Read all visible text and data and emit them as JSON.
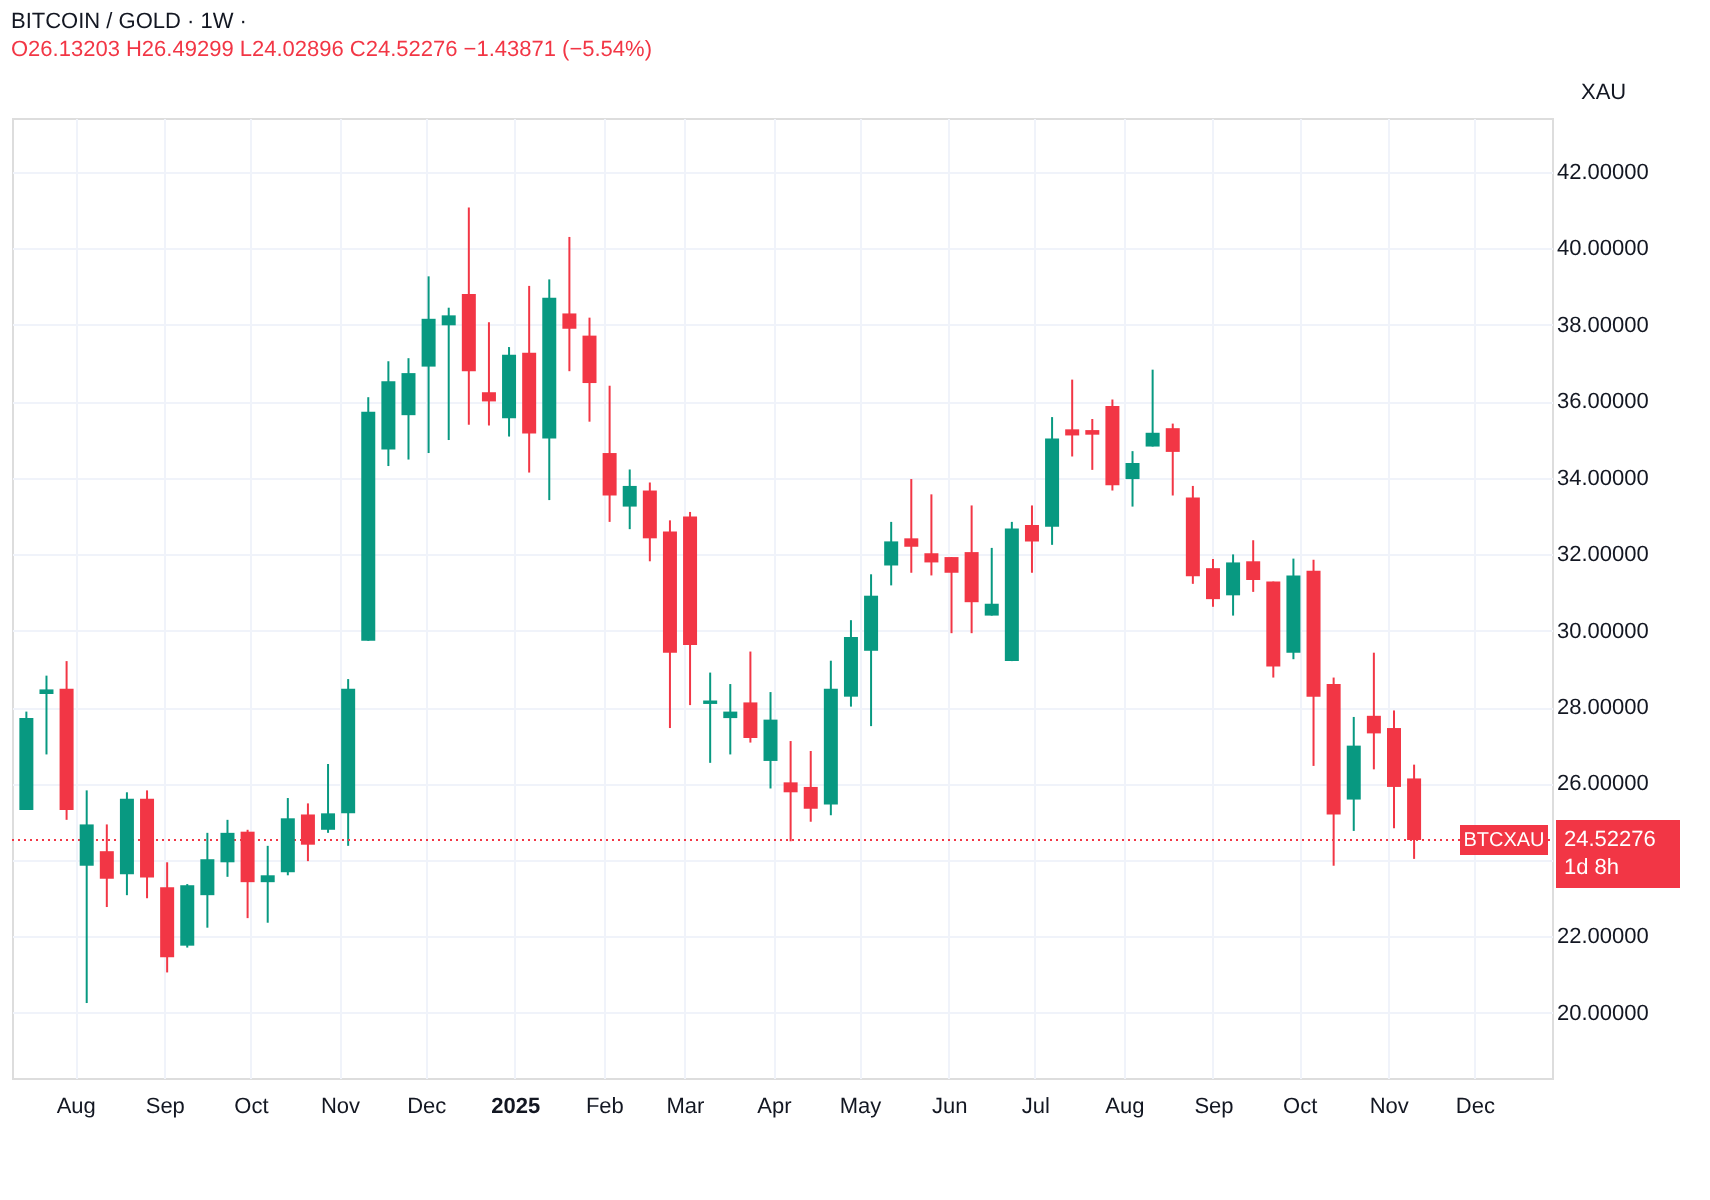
{
  "chart_data": {
    "type": "candlestick",
    "title": "BITCOIN / GOLD · 1W ·",
    "subtitle": "O26.13203 H26.49299 L24.02896 C24.52276 −1.43871 (−5.54%)",
    "ylabel": "XAU",
    "x": [
      "2024-07-15",
      "2024-07-22",
      "2024-07-29",
      "2024-08-05",
      "2024-08-12",
      "2024-08-19",
      "2024-08-26",
      "2024-09-02",
      "2024-09-09",
      "2024-09-16",
      "2024-09-23",
      "2024-09-30",
      "2024-10-07",
      "2024-10-14",
      "2024-10-21",
      "2024-10-28",
      "2024-11-04",
      "2024-11-11",
      "2024-11-18",
      "2024-11-25",
      "2024-12-02",
      "2024-12-09",
      "2024-12-16",
      "2024-12-23",
      "2024-12-30",
      "2025-01-06",
      "2025-01-13",
      "2025-01-20",
      "2025-01-27",
      "2025-02-03",
      "2025-02-10",
      "2025-02-17",
      "2025-02-24",
      "2025-03-03",
      "2025-03-10",
      "2025-03-17",
      "2025-03-24",
      "2025-03-31",
      "2025-04-07",
      "2025-04-14",
      "2025-04-21",
      "2025-04-28",
      "2025-05-05",
      "2025-05-12",
      "2025-05-19",
      "2025-05-26",
      "2025-06-02",
      "2025-06-09",
      "2025-06-16",
      "2025-06-23",
      "2025-06-30",
      "2025-07-07",
      "2025-07-14",
      "2025-07-21",
      "2025-07-28",
      "2025-08-04",
      "2025-08-11",
      "2025-08-18",
      "2025-08-25",
      "2025-09-01",
      "2025-09-08",
      "2025-09-15",
      "2025-09-22",
      "2025-09-29",
      "2025-10-06",
      "2025-10-13",
      "2025-10-20",
      "2025-10-27",
      "2025-11-03",
      "2025-11-10"
    ],
    "ohlc": [
      [
        25.31,
        27.88,
        25.31,
        27.71
      ],
      [
        28.34,
        28.82,
        26.76,
        28.46
      ],
      [
        28.48,
        29.2,
        25.05,
        25.31
      ],
      [
        23.85,
        25.82,
        20.26,
        24.93
      ],
      [
        24.23,
        24.93,
        22.77,
        23.51
      ],
      [
        23.63,
        25.77,
        23.08,
        25.6
      ],
      [
        25.6,
        25.82,
        23.0,
        23.54
      ],
      [
        23.29,
        23.94,
        21.06,
        21.46
      ],
      [
        21.76,
        23.37,
        21.71,
        23.34
      ],
      [
        23.08,
        24.71,
        22.23,
        24.02
      ],
      [
        23.94,
        25.05,
        23.56,
        24.71
      ],
      [
        24.74,
        24.79,
        22.48,
        23.42
      ],
      [
        23.42,
        24.37,
        22.36,
        23.6
      ],
      [
        23.68,
        25.62,
        23.6,
        25.09
      ],
      [
        25.19,
        25.48,
        23.97,
        24.4
      ],
      [
        24.79,
        26.51,
        24.71,
        25.22
      ],
      [
        25.22,
        28.73,
        24.37,
        28.48
      ],
      [
        29.73,
        36.1,
        29.73,
        35.72
      ],
      [
        34.73,
        37.04,
        34.3,
        36.52
      ],
      [
        35.63,
        37.12,
        34.47,
        36.73
      ],
      [
        36.9,
        39.26,
        34.64,
        38.15
      ],
      [
        37.98,
        38.44,
        34.98,
        38.24
      ],
      [
        38.8,
        41.06,
        35.38,
        36.78
      ],
      [
        36.23,
        38.06,
        35.36,
        35.99
      ],
      [
        35.55,
        37.41,
        35.07,
        37.21
      ],
      [
        37.26,
        39.01,
        34.13,
        35.15
      ],
      [
        35.02,
        39.18,
        33.41,
        38.7
      ],
      [
        38.29,
        40.29,
        36.78,
        37.89
      ],
      [
        37.71,
        38.18,
        35.46,
        36.47
      ],
      [
        34.64,
        36.4,
        32.84,
        33.53
      ],
      [
        33.24,
        34.21,
        32.65,
        33.78
      ],
      [
        33.66,
        33.87,
        31.81,
        32.41
      ],
      [
        32.59,
        32.88,
        27.45,
        29.42
      ],
      [
        32.98,
        33.1,
        28.05,
        29.62
      ],
      [
        28.08,
        28.9,
        26.54,
        28.17
      ],
      [
        27.71,
        28.6,
        26.76,
        27.88
      ],
      [
        28.12,
        29.45,
        27.07,
        27.19
      ],
      [
        26.59,
        28.39,
        25.87,
        27.67
      ],
      [
        26.03,
        27.11,
        24.49,
        25.77
      ],
      [
        25.91,
        26.85,
        25.0,
        25.34
      ],
      [
        25.45,
        29.21,
        25.17,
        28.48
      ],
      [
        28.27,
        30.27,
        28.01,
        29.83
      ],
      [
        29.47,
        31.47,
        27.5,
        30.91
      ],
      [
        31.7,
        32.84,
        31.18,
        32.33
      ],
      [
        32.41,
        33.96,
        31.51,
        32.19
      ],
      [
        32.02,
        33.56,
        31.44,
        31.78
      ],
      [
        31.92,
        31.92,
        29.93,
        31.51
      ],
      [
        32.05,
        33.27,
        29.93,
        30.74
      ],
      [
        30.39,
        32.16,
        30.39,
        30.7
      ],
      [
        29.2,
        32.84,
        29.2,
        32.67
      ],
      [
        32.76,
        33.27,
        31.51,
        32.33
      ],
      [
        32.71,
        35.58,
        32.24,
        35.02
      ],
      [
        35.26,
        36.56,
        34.55,
        35.1
      ],
      [
        35.24,
        35.53,
        34.2,
        35.12
      ],
      [
        35.87,
        36.04,
        33.66,
        33.8
      ],
      [
        33.96,
        34.69,
        33.24,
        34.38
      ],
      [
        34.81,
        36.82,
        34.81,
        35.17
      ],
      [
        35.29,
        35.41,
        33.53,
        34.67
      ],
      [
        33.48,
        33.78,
        31.22,
        31.42
      ],
      [
        31.63,
        31.87,
        30.62,
        30.82
      ],
      [
        30.92,
        31.99,
        30.39,
        31.78
      ],
      [
        31.81,
        32.36,
        31.01,
        31.32
      ],
      [
        31.28,
        31.28,
        28.77,
        29.06
      ],
      [
        29.42,
        31.88,
        29.25,
        31.44
      ],
      [
        31.56,
        31.85,
        26.46,
        28.27
      ],
      [
        28.6,
        28.77,
        23.85,
        25.19
      ],
      [
        25.58,
        27.74,
        24.76,
        26.99
      ],
      [
        27.77,
        29.42,
        26.37,
        27.31
      ],
      [
        27.45,
        27.91,
        24.83,
        25.91
      ],
      [
        26.13203,
        26.49299,
        24.02896,
        24.52276
      ]
    ],
    "colors": [
      "#089981",
      "#089981",
      "#f23645",
      "#089981",
      "#f23645",
      "#089981",
      "#f23645",
      "#f23645",
      "#089981",
      "#089981",
      "#089981",
      "#f23645",
      "#089981",
      "#089981",
      "#f23645",
      "#089981",
      "#089981",
      "#089981",
      "#089981",
      "#089981",
      "#089981",
      "#089981",
      "#f23645",
      "#f23645",
      "#089981",
      "#f23645",
      "#089981",
      "#f23645",
      "#f23645",
      "#f23645",
      "#089981",
      "#f23645",
      "#f23645",
      "#f23645",
      "#089981",
      "#089981",
      "#f23645",
      "#089981",
      "#f23645",
      "#f23645",
      "#089981",
      "#089981",
      "#089981",
      "#089981",
      "#f23645",
      "#f23645",
      "#f23645",
      "#f23645",
      "#089981",
      "#089981",
      "#f23645",
      "#089981",
      "#f23645",
      "#f23645",
      "#f23645",
      "#089981",
      "#089981",
      "#f23645",
      "#f23645",
      "#f23645",
      "#089981",
      "#f23645",
      "#f23645",
      "#089981",
      "#f23645",
      "#f23645",
      "#089981",
      "#f23645",
      "#f23645",
      "#f23645"
    ],
    "xlim": [
      "2024-07-10",
      "2025-12-28"
    ],
    "xticks": [
      {
        "value": "2024-08-01",
        "label": "Aug"
      },
      {
        "value": "2024-09-01",
        "label": "Sep"
      },
      {
        "value": "2024-10-01",
        "label": "Oct"
      },
      {
        "value": "2024-11-01",
        "label": "Nov"
      },
      {
        "value": "2024-12-01",
        "label": "Dec"
      },
      {
        "value": "2025-01-01",
        "label": "2025"
      },
      {
        "value": "2025-02-01",
        "label": "Feb"
      },
      {
        "value": "2025-03-01",
        "label": "Mar"
      },
      {
        "value": "2025-04-01",
        "label": "Apr"
      },
      {
        "value": "2025-05-01",
        "label": "May"
      },
      {
        "value": "2025-06-01",
        "label": "Jun"
      },
      {
        "value": "2025-07-01",
        "label": "Jul"
      },
      {
        "value": "2025-08-01",
        "label": "Aug"
      },
      {
        "value": "2025-09-01",
        "label": "Sep"
      },
      {
        "value": "2025-10-01",
        "label": "Oct"
      },
      {
        "value": "2025-11-01",
        "label": "Nov"
      },
      {
        "value": "2025-12-01",
        "label": "Dec"
      }
    ],
    "ylim": [
      18.3,
      43.4
    ],
    "yticks": [
      {
        "value": 20,
        "label": "20.00000"
      },
      {
        "value": 22,
        "label": "22.00000"
      },
      {
        "value": 24,
        "label": null
      },
      {
        "value": 26,
        "label": "26.00000"
      },
      {
        "value": 28,
        "label": "28.00000"
      },
      {
        "value": 30,
        "label": "30.00000"
      },
      {
        "value": 32,
        "label": "32.00000"
      },
      {
        "value": 34,
        "label": "34.00000"
      },
      {
        "value": 36,
        "label": "36.00000"
      },
      {
        "value": 38,
        "label": "38.00000"
      },
      {
        "value": 40,
        "label": "40.00000"
      },
      {
        "value": 42,
        "label": "42.00000"
      }
    ],
    "grid": true,
    "ref_lines": [
      {
        "axis": "y",
        "value": 24.52276,
        "label": "BTCXAU",
        "color": "#f23645",
        "line_style": "dotted"
      }
    ],
    "annotations": [
      "24.52276",
      "1d 8h"
    ]
  }
}
